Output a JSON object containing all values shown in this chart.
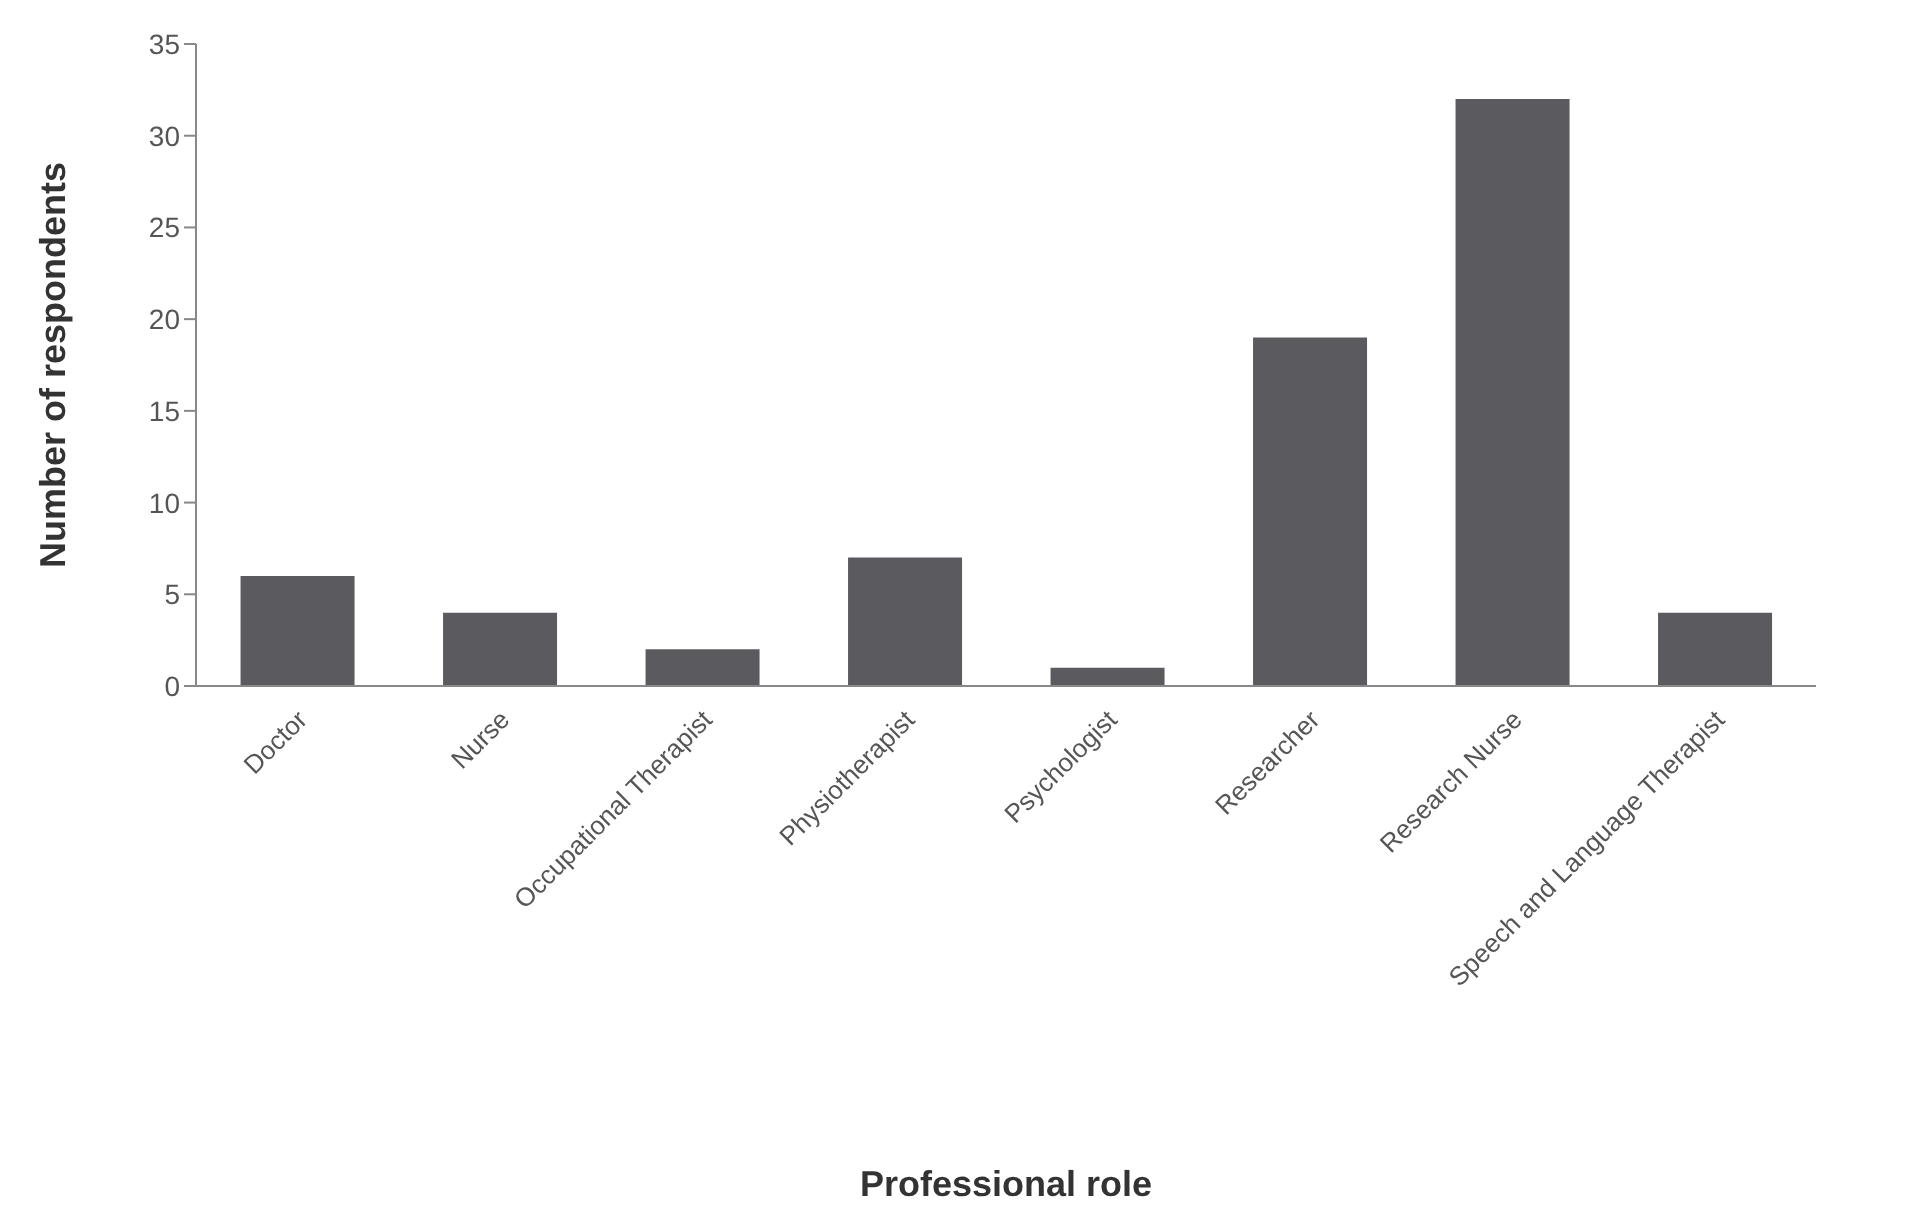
{
  "chart_data": {
    "type": "bar",
    "xlabel": "Professional role",
    "ylabel": "Number of respondents",
    "categories": [
      "Doctor",
      "Nurse",
      "Occupational Therapist",
      "Physiotherapist",
      "Psychologist",
      "Researcher",
      "Research Nurse",
      "Speech and Language Therapist"
    ],
    "values": [
      6,
      4,
      2,
      7,
      1,
      19,
      32,
      4
    ],
    "color": "#5b5b5f",
    "ylim": [
      0,
      35
    ],
    "yticks": [
      0,
      5,
      10,
      15,
      20,
      25,
      30,
      35
    ],
    "grid": false,
    "legend": false
  }
}
